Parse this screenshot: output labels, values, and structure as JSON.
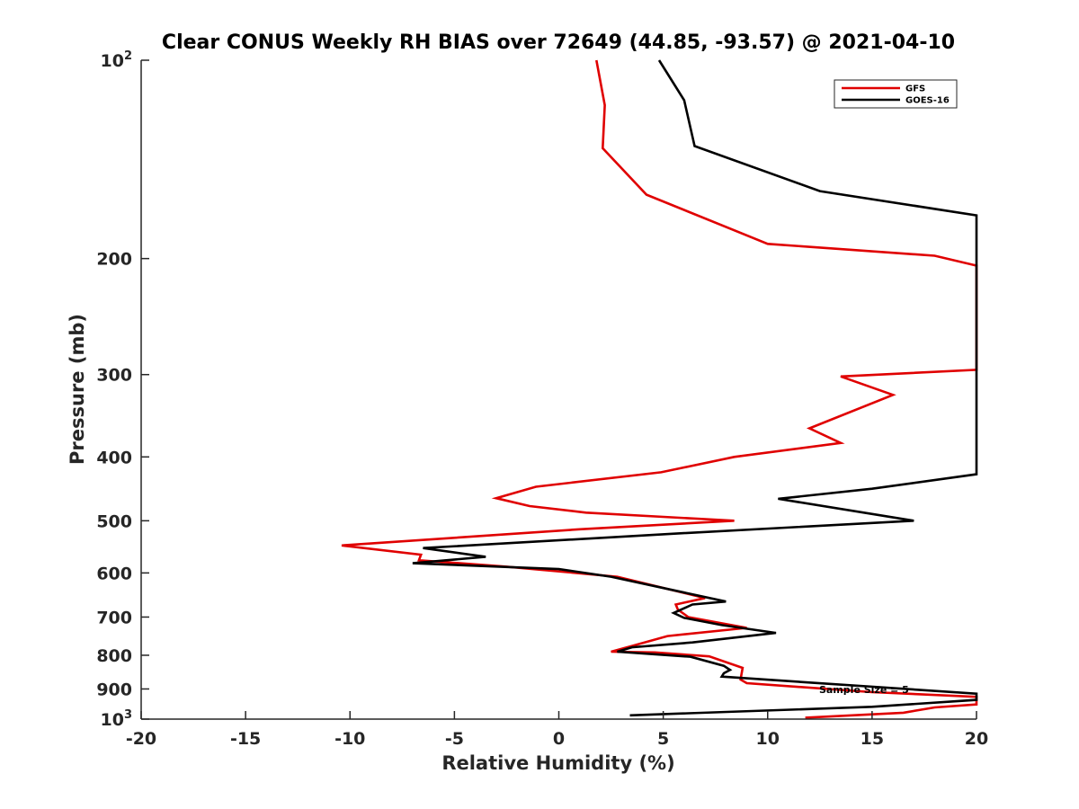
{
  "chart_data": {
    "type": "line",
    "title": "Clear CONUS Weekly RH BIAS over 72649 (44.85, -93.57) @ 2021-04-10",
    "xlabel": "Relative Humidity (%)",
    "ylabel": "Pressure (mb)",
    "xlim": [
      -20,
      20
    ],
    "ylim": [
      100,
      1000
    ],
    "y_scale": "log",
    "y_reversed": true,
    "grid": false,
    "legend_position": "top-right",
    "x_ticks": [
      "-20",
      "-15",
      "-10",
      "-5",
      "0",
      "5",
      "10",
      "15",
      "20"
    ],
    "y_ticks": [
      {
        "base": "10",
        "exp": "2",
        "value": 100
      },
      {
        "base": "200",
        "exp": "",
        "value": 200
      },
      {
        "base": "300",
        "exp": "",
        "value": 300
      },
      {
        "base": "400",
        "exp": "",
        "value": 400
      },
      {
        "base": "500",
        "exp": "",
        "value": 500
      },
      {
        "base": "600",
        "exp": "",
        "value": 600
      },
      {
        "base": "700",
        "exp": "",
        "value": 700
      },
      {
        "base": "800",
        "exp": "",
        "value": 800
      },
      {
        "base": "900",
        "exp": "",
        "value": 900
      },
      {
        "base": "10",
        "exp": "3",
        "value": 1000
      }
    ],
    "annotation": "Sample Size = 5",
    "series": [
      {
        "name": "GFS",
        "color": "#e00000",
        "points": [
          [
            1.8,
            100
          ],
          [
            2.2,
            117
          ],
          [
            2.1,
            136
          ],
          [
            4.2,
            160
          ],
          [
            10,
            190
          ],
          [
            18,
            198
          ],
          [
            20,
            205
          ],
          [
            20,
            295
          ],
          [
            13.5,
            302
          ],
          [
            16,
            322
          ],
          [
            12,
            362
          ],
          [
            13.5,
            381
          ],
          [
            8.4,
            400
          ],
          [
            4.9,
            422
          ],
          [
            -1.1,
            444
          ],
          [
            -3,
            462
          ],
          [
            -1.4,
            475
          ],
          [
            1.3,
            486
          ],
          [
            8.4,
            500
          ],
          [
            1,
            515
          ],
          [
            -10.4,
            545
          ],
          [
            -6.6,
            563
          ],
          [
            -6.7,
            574
          ],
          [
            -2.5,
            587
          ],
          [
            2.8,
            608
          ],
          [
            7,
            655
          ],
          [
            5.6,
            670
          ],
          [
            5.7,
            682
          ],
          [
            6.2,
            700
          ],
          [
            9,
            727
          ],
          [
            5.2,
            748
          ],
          [
            3.6,
            773
          ],
          [
            2.5,
            790
          ],
          [
            4.6,
            792
          ],
          [
            7.2,
            803
          ],
          [
            8.8,
            836
          ],
          [
            8.7,
            871
          ],
          [
            9,
            882
          ],
          [
            15,
            910
          ],
          [
            20,
            925
          ],
          [
            20,
            950
          ],
          [
            18,
            960
          ],
          [
            16.5,
            978
          ],
          [
            11.8,
            995
          ]
        ]
      },
      {
        "name": "GOES-16",
        "color": "#000000",
        "points": [
          [
            4.8,
            100
          ],
          [
            6,
            115
          ],
          [
            6.5,
            135
          ],
          [
            12.5,
            158
          ],
          [
            20,
            172
          ],
          [
            20,
            425
          ],
          [
            15,
            447
          ],
          [
            10.5,
            463
          ],
          [
            17,
            500
          ],
          [
            6,
            522
          ],
          [
            -6.5,
            550
          ],
          [
            -3.5,
            567
          ],
          [
            -7,
            580
          ],
          [
            0,
            592
          ],
          [
            2.5,
            608
          ],
          [
            8,
            663
          ],
          [
            6.4,
            670
          ],
          [
            5.5,
            690
          ],
          [
            6,
            702
          ],
          [
            7.8,
            720
          ],
          [
            10.4,
            740
          ],
          [
            6.4,
            765
          ],
          [
            3.5,
            778
          ],
          [
            2.8,
            790
          ],
          [
            6.3,
            804
          ],
          [
            7.9,
            830
          ],
          [
            8.2,
            842
          ],
          [
            7.9,
            852
          ],
          [
            7.8,
            862
          ],
          [
            12,
            880
          ],
          [
            20,
            915
          ],
          [
            20,
            935
          ],
          [
            15,
            958
          ],
          [
            3.4,
            987
          ]
        ]
      }
    ]
  }
}
